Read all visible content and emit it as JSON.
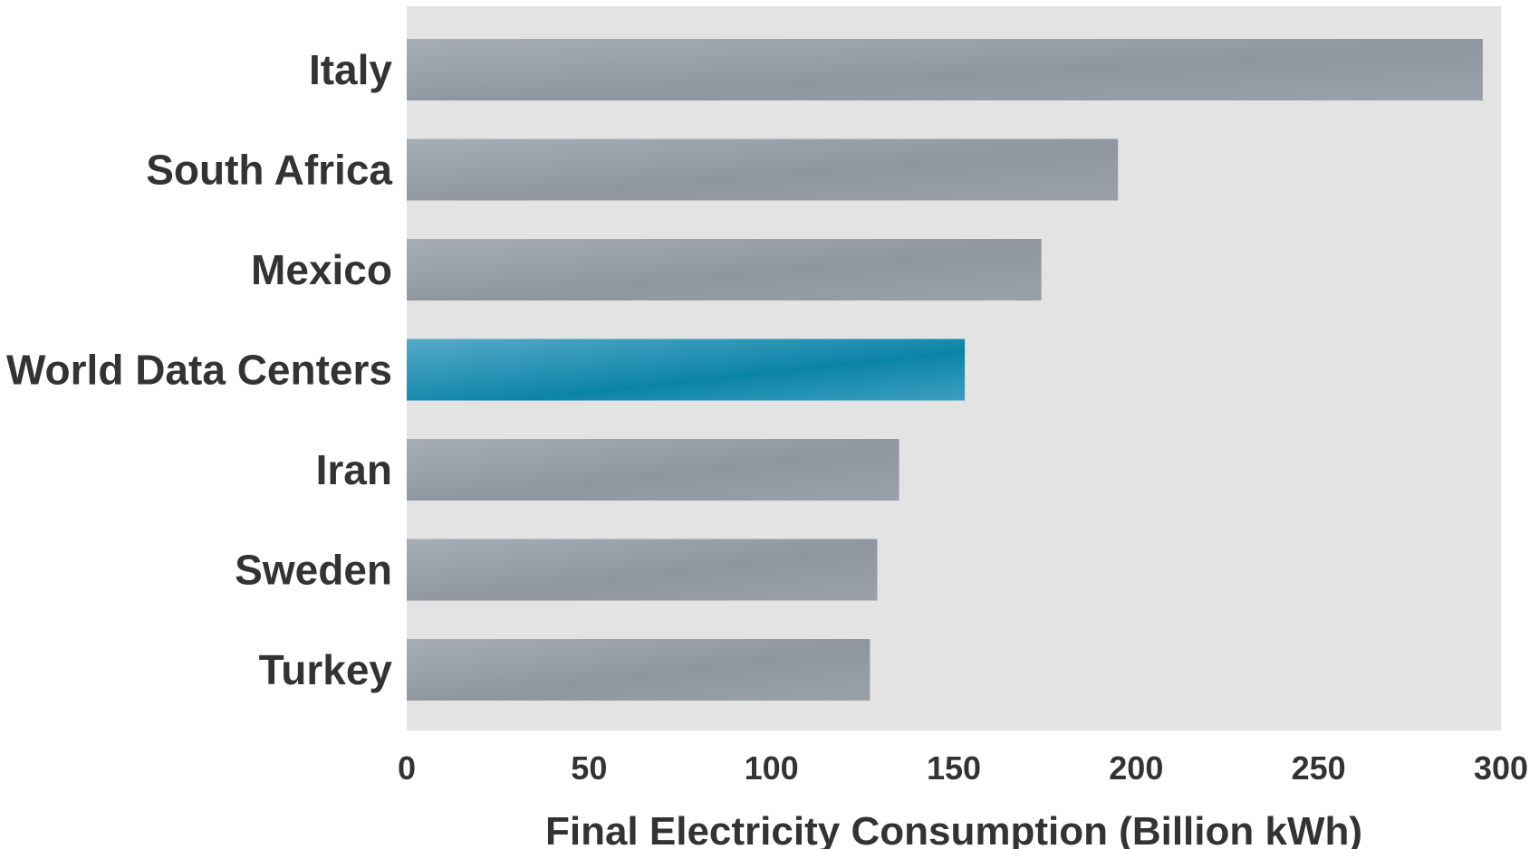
{
  "chart_data": {
    "type": "bar",
    "orientation": "horizontal",
    "categories": [
      "Italy",
      "South Africa",
      "Mexico",
      "World Data Centers",
      "Iran",
      "Sweden",
      "Turkey"
    ],
    "values": [
      295,
      195,
      174,
      153,
      135,
      129,
      127
    ],
    "highlight_category": "World Data Centers",
    "xlabel": "Final Electricity Consumption (Billion kWh)",
    "ylabel": "",
    "title": "",
    "xlim": [
      0,
      300
    ],
    "xticks": [
      0,
      50,
      100,
      150,
      200,
      250,
      300
    ],
    "grid": false,
    "legend": "none",
    "colors": {
      "plot_background": "#e3e3e3",
      "bar": "#949ba3",
      "highlight_bar": "#2f93b5",
      "text": "#333333"
    }
  }
}
